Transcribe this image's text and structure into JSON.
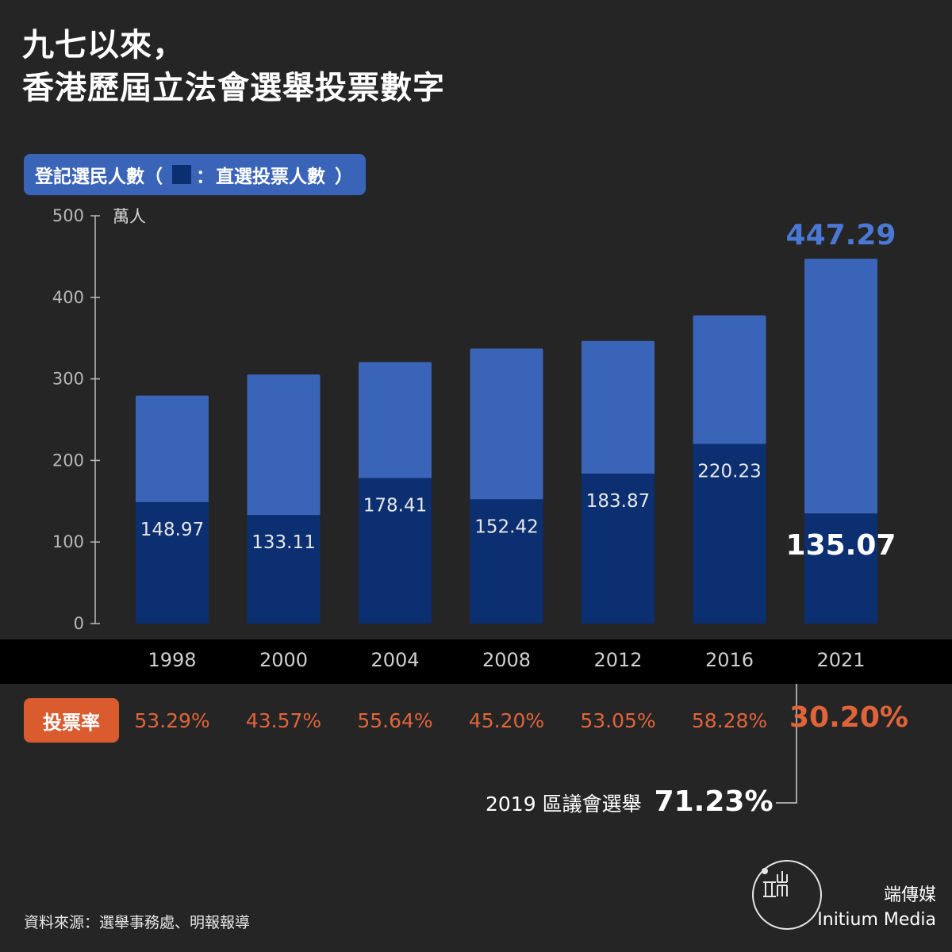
{
  "title": {
    "line1": "九七以來，",
    "line2": "香港歷屆立法會選舉投票數字"
  },
  "legend": {
    "registered_label": "登記選民人數",
    "paren_open": "（",
    "separator": "：",
    "voted_label": "直選投票人數",
    "paren_close": "）"
  },
  "turnout_label": "投票率",
  "district_council_note": {
    "label": "2019 區議會選舉",
    "value": "71.23%"
  },
  "source": "資料來源：選舉事務處、明報報導",
  "brand": {
    "zh": "端傳媒",
    "en": "Initium Media"
  },
  "colors": {
    "background": "#252525",
    "registered_bar": "#3a64b8",
    "voted_bar": "#0b2f70",
    "total_label": "#4a78d4",
    "turnout": "#e0643a",
    "turnout_pill": "#d95b2e"
  },
  "chart_data": {
    "type": "bar",
    "stacked_overlay": true,
    "unit": "萬人",
    "categories": [
      "1998",
      "2000",
      "2004",
      "2008",
      "2012",
      "2016",
      "2021"
    ],
    "series": [
      {
        "name": "登記選民人數",
        "values": [
          279.5,
          305.5,
          320.7,
          337.2,
          346.6,
          377.9,
          447.29
        ],
        "labels": [
          "",
          "",
          "",
          "",
          "",
          "",
          "447.29"
        ]
      },
      {
        "name": "直選投票人數",
        "values": [
          148.97,
          133.11,
          178.41,
          152.42,
          183.87,
          220.23,
          135.07
        ],
        "labels": [
          "148.97",
          "133.11",
          "178.41",
          "152.42",
          "183.87",
          "220.23",
          "135.07"
        ]
      }
    ],
    "turnout": [
      "53.29%",
      "43.57%",
      "55.64%",
      "45.20%",
      "53.05%",
      "58.28%",
      "30.20%"
    ],
    "yticks": [
      "0",
      "100",
      "200",
      "300",
      "400",
      "500"
    ],
    "ylim": [
      0,
      500
    ],
    "grid": false,
    "legend": "top-left"
  }
}
